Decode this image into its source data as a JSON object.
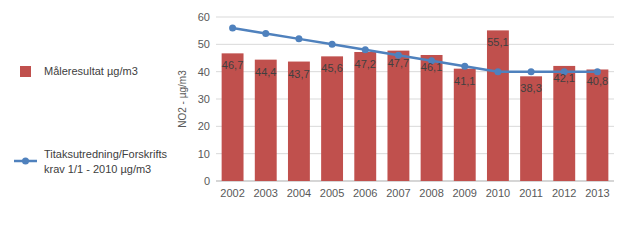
{
  "chart_data": {
    "type": "bar",
    "y_label": "NO2 - µg/m3",
    "categories": [
      "2002",
      "2003",
      "2004",
      "2005",
      "2006",
      "2007",
      "2008",
      "2009",
      "2010",
      "2011",
      "2012",
      "2013"
    ],
    "series": [
      {
        "name": "Måleresultat µg/m3",
        "type": "bar",
        "color": "#c0504d",
        "values": [
          46.7,
          44.4,
          43.7,
          45.6,
          47.2,
          47.7,
          46.1,
          41.1,
          55.1,
          38.3,
          42.1,
          40.8
        ],
        "value_labels": [
          "46,7",
          "44,4",
          "43,7",
          "45,6",
          "47,2",
          "47,7",
          "46,1",
          "41,1",
          "55,1",
          "38,3",
          "42,1",
          "40,8"
        ],
        "data_labels": true
      },
      {
        "name": "Titaksutredning/Forskrifts krav 1/1 - 2010 µg/m3",
        "type": "line",
        "color": "#4f81bd",
        "marker": "circle",
        "line_style": "solid",
        "values": [
          56,
          54,
          52,
          50,
          48,
          46,
          44,
          42,
          40,
          40,
          40,
          40
        ]
      }
    ],
    "ylim": [
      0,
      60
    ],
    "yticks": [
      0,
      10,
      20,
      30,
      40,
      50,
      60
    ],
    "grid": true,
    "legend": "left"
  }
}
